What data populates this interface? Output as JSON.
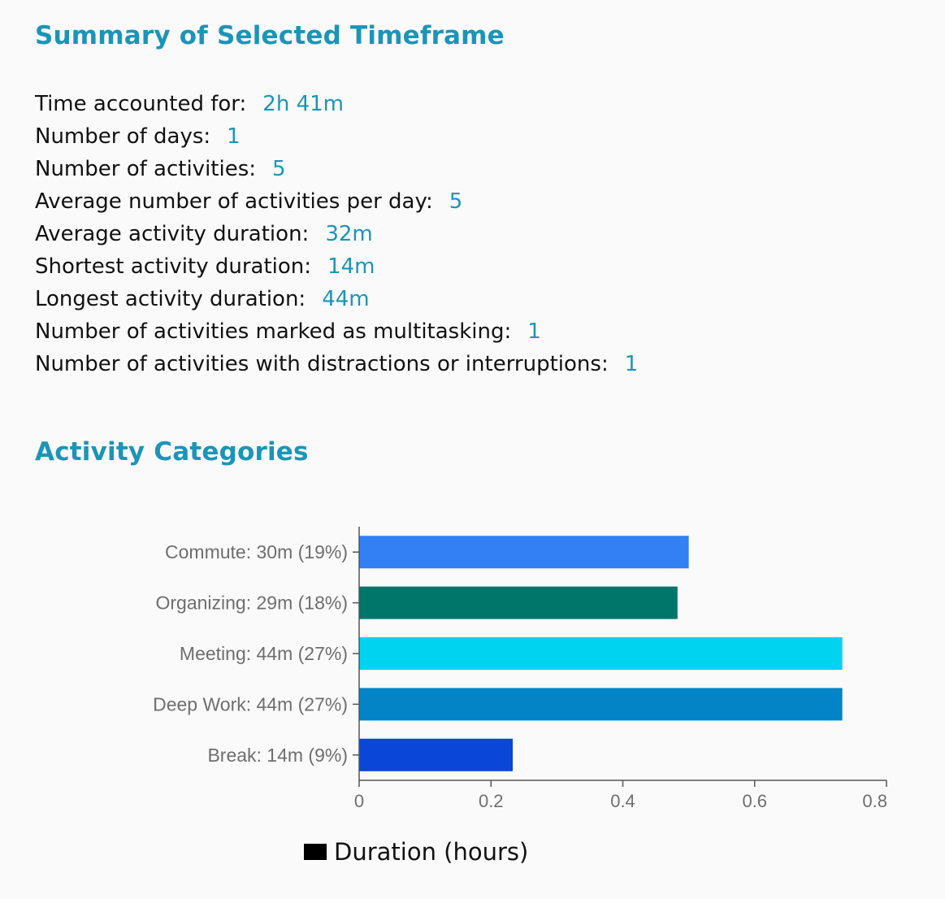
{
  "summary": {
    "title": "Summary of Selected Timeframe",
    "stats": [
      {
        "label": "Time accounted for:",
        "value": "2h 41m"
      },
      {
        "label": "Number of days:",
        "value": "1"
      },
      {
        "label": "Number of activities:",
        "value": "5"
      },
      {
        "label": "Average number of activities per day:",
        "value": "5"
      },
      {
        "label": "Average activity duration:",
        "value": "32m"
      },
      {
        "label": "Shortest activity duration:",
        "value": "14m"
      },
      {
        "label": "Longest activity duration:",
        "value": "44m"
      },
      {
        "label": "Number of activities marked as multitasking:",
        "value": "1"
      },
      {
        "label": "Number of activities with distractions or interruptions:",
        "value": "1"
      }
    ]
  },
  "categories": {
    "title": "Activity Categories"
  },
  "chart_data": {
    "type": "bar",
    "orientation": "horizontal",
    "categories": [
      "Commute: 30m (19%)",
      "Organizing: 29m (18%)",
      "Meeting: 44m (27%)",
      "Deep Work: 44m (27%)",
      "Break: 14m (9%)"
    ],
    "values": [
      0.5,
      0.483,
      0.733,
      0.733,
      0.233
    ],
    "colors": [
      "#3380f5",
      "#00766b",
      "#00d3ef",
      "#0284c7",
      "#0a47d8"
    ],
    "xticks": [
      "0",
      "0.2",
      "0.4",
      "0.6",
      "0.8"
    ],
    "xlim": [
      0,
      0.8
    ],
    "legend": "Duration (hours)",
    "legend_color": "#000000"
  }
}
